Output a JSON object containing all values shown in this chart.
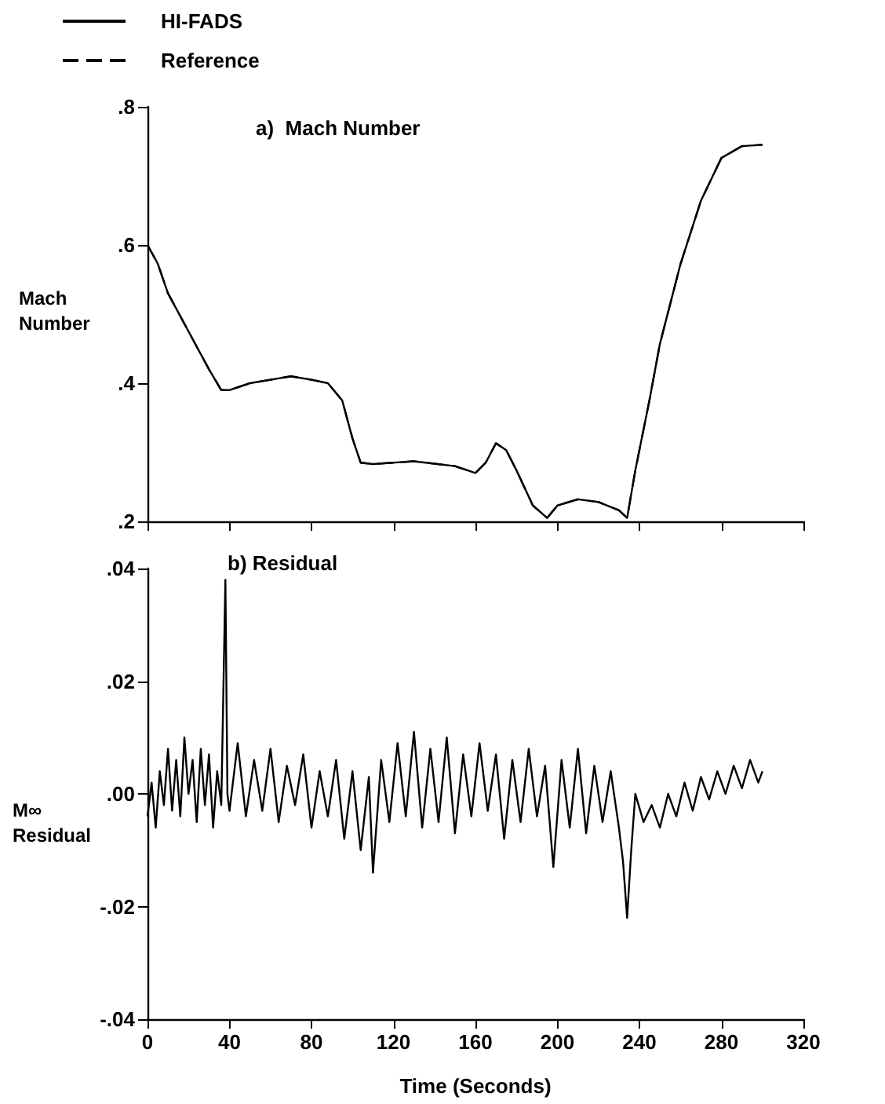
{
  "chart_data": [
    {
      "type": "line",
      "legend": "top left",
      "tick_labels": "y",
      "ylabel": "Mach Number",
      "annotations": [
        "a)  Mach Number"
      ],
      "xlim": [
        0,
        320
      ],
      "xticks": [
        0,
        40,
        80,
        120,
        160,
        200,
        240,
        280,
        320
      ],
      "ylim": [
        0.2,
        0.8
      ],
      "yticks": [
        {
          "value": 0.2,
          "label": ".2"
        },
        {
          "value": 0.4,
          "label": ".4"
        },
        {
          "value": 0.6,
          "label": ".6"
        },
        {
          "value": 0.8,
          "label": ".8"
        }
      ],
      "series": [
        {
          "name": "HI-FADS",
          "color": "#000000",
          "line_style": "solid",
          "x": [
            0,
            5,
            10,
            20,
            30,
            36,
            40,
            50,
            60,
            70,
            80,
            88,
            95,
            100,
            104,
            110,
            130,
            150,
            160,
            165,
            170,
            175,
            180,
            188,
            195,
            200,
            210,
            220,
            230,
            234,
            238,
            245,
            250,
            260,
            270,
            280,
            290,
            300
          ],
          "values": [
            0.6,
            0.573,
            0.53,
            0.475,
            0.42,
            0.39,
            0.39,
            0.4,
            0.405,
            0.41,
            0.405,
            0.4,
            0.375,
            0.32,
            0.285,
            0.283,
            0.287,
            0.28,
            0.27,
            0.285,
            0.313,
            0.303,
            0.274,
            0.223,
            0.205,
            0.223,
            0.232,
            0.228,
            0.216,
            0.205,
            0.274,
            0.377,
            0.457,
            0.572,
            0.664,
            0.726,
            0.743,
            0.745
          ]
        },
        {
          "name": "Reference",
          "color": "#000000",
          "line_style": "dashed",
          "x": [
            0,
            5,
            10,
            20,
            30,
            36,
            40,
            50,
            60,
            70,
            80,
            88,
            95,
            100,
            104,
            110,
            130,
            150,
            160,
            165,
            170,
            175,
            180,
            188,
            195,
            200,
            210,
            220,
            230,
            234,
            238,
            245,
            250,
            260,
            270,
            280,
            290,
            300
          ],
          "values": [
            0.6,
            0.573,
            0.53,
            0.475,
            0.42,
            0.39,
            0.39,
            0.4,
            0.405,
            0.41,
            0.405,
            0.4,
            0.375,
            0.32,
            0.285,
            0.283,
            0.287,
            0.28,
            0.27,
            0.285,
            0.313,
            0.303,
            0.274,
            0.223,
            0.205,
            0.223,
            0.232,
            0.228,
            0.216,
            0.205,
            0.274,
            0.377,
            0.457,
            0.572,
            0.664,
            0.726,
            0.743,
            0.745
          ]
        }
      ]
    },
    {
      "type": "line",
      "xlabel": "Time (Seconds)",
      "ylabel": "M∞\nResidual",
      "annotations": [
        "b) Residual"
      ],
      "xlim": [
        0,
        320
      ],
      "xticks": [
        0,
        40,
        80,
        120,
        160,
        200,
        240,
        280,
        320
      ],
      "ylim": [
        -0.04,
        0.04
      ],
      "yticks": [
        {
          "value": -0.04,
          "label": "-.04"
        },
        {
          "value": -0.02,
          "label": "-.02"
        },
        {
          "value": 0,
          "label": ".00"
        },
        {
          "value": 0.02,
          "label": ".02"
        },
        {
          "value": 0.04,
          "label": ".04"
        }
      ],
      "series": [
        {
          "color": "#000000",
          "line_style": "solid",
          "x": [
            0,
            2,
            4,
            6,
            8,
            10,
            12,
            14,
            16,
            18,
            20,
            22,
            24,
            26,
            28,
            30,
            32,
            34,
            36,
            38,
            39,
            40,
            44,
            48,
            52,
            56,
            60,
            64,
            68,
            72,
            76,
            80,
            84,
            88,
            92,
            96,
            100,
            104,
            108,
            110,
            114,
            118,
            122,
            126,
            130,
            134,
            138,
            142,
            146,
            150,
            154,
            158,
            162,
            166,
            170,
            174,
            178,
            182,
            186,
            190,
            194,
            198,
            202,
            206,
            210,
            214,
            218,
            222,
            226,
            230,
            232,
            234,
            236,
            238,
            242,
            246,
            250,
            254,
            258,
            262,
            266,
            270,
            274,
            278,
            282,
            286,
            290,
            294,
            298,
            300
          ],
          "values": [
            -0.004,
            0.002,
            -0.006,
            0.004,
            -0.002,
            0.008,
            -0.003,
            0.006,
            -0.004,
            0.01,
            0,
            0.006,
            -0.005,
            0.008,
            -0.002,
            0.007,
            -0.006,
            0.004,
            -0.002,
            0.038,
            0,
            -0.003,
            0.009,
            -0.004,
            0.006,
            -0.003,
            0.008,
            -0.005,
            0.005,
            -0.002,
            0.007,
            -0.006,
            0.004,
            -0.004,
            0.006,
            -0.008,
            0.004,
            -0.01,
            0.003,
            -0.014,
            0.006,
            -0.005,
            0.009,
            -0.004,
            0.011,
            -0.006,
            0.008,
            -0.005,
            0.01,
            -0.007,
            0.007,
            -0.004,
            0.009,
            -0.003,
            0.007,
            -0.008,
            0.006,
            -0.005,
            0.008,
            -0.004,
            0.005,
            -0.013,
            0.006,
            -0.006,
            0.008,
            -0.007,
            0.005,
            -0.005,
            0.004,
            -0.006,
            -0.012,
            -0.022,
            -0.01,
            0,
            -0.005,
            -0.002,
            -0.006,
            0,
            -0.004,
            0.002,
            -0.003,
            0.003,
            -0.001,
            0.004,
            0,
            0.005,
            0.001,
            0.006,
            0.002,
            0.004
          ]
        }
      ]
    }
  ]
}
